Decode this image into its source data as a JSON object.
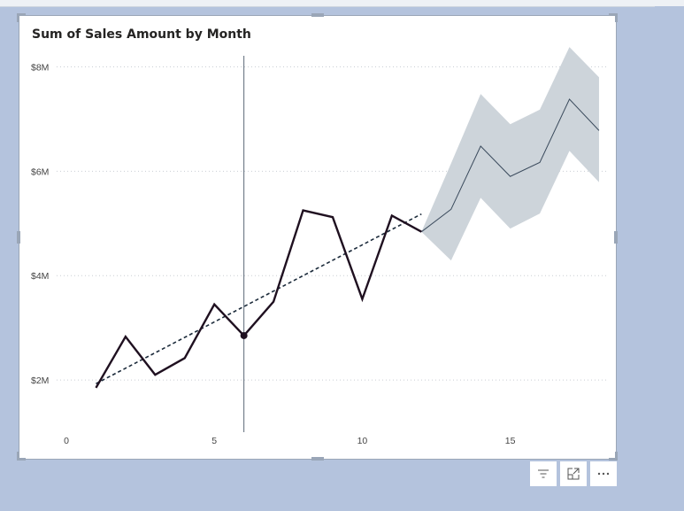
{
  "visual": {
    "title": "Sum of Sales Amount by Month"
  },
  "toolbar": {
    "filter_icon": "filter-icon",
    "focus_icon": "focus-mode-icon",
    "more_icon": "more-options-icon"
  },
  "chart_data": {
    "type": "line",
    "title": "Sum of Sales Amount by Month",
    "xlabel": "",
    "ylabel": "",
    "x_ticks": [
      0,
      5,
      10,
      15
    ],
    "y_ticks": [
      2000000,
      4000000,
      6000000,
      8000000
    ],
    "y_tick_labels": [
      "$2M",
      "$4M",
      "$6M",
      "$8M"
    ],
    "xlim": [
      0,
      18.3
    ],
    "ylim": [
      1000000,
      8500000
    ],
    "grid": true,
    "series": [
      {
        "role": "actual",
        "color": "#1f1020",
        "x": [
          1,
          2,
          3,
          4,
          5,
          6,
          7,
          8,
          9,
          10,
          11,
          12
        ],
        "y": [
          1850000,
          2830000,
          2100000,
          2420000,
          3450000,
          2850000,
          3500000,
          5250000,
          5120000,
          3550000,
          5150000,
          4840000
        ]
      },
      {
        "role": "trend",
        "color": "#1b2a3a",
        "x": [
          1,
          12
        ],
        "y": [
          1930000,
          5180000
        ]
      },
      {
        "role": "forecast",
        "color": "#3a4a5c",
        "x": [
          12,
          13,
          14,
          15,
          16,
          17,
          18
        ],
        "y": [
          4840000,
          5270000,
          6480000,
          5900000,
          6170000,
          7380000,
          6780000
        ],
        "upper": [
          4840000,
          6150000,
          7480000,
          6900000,
          7180000,
          8380000,
          7800000
        ],
        "lower": [
          4840000,
          4290000,
          5490000,
          4900000,
          5190000,
          6390000,
          5790000
        ],
        "band_color": "#cdd4da"
      }
    ],
    "highlight": {
      "x": 6,
      "y": 2850000
    }
  }
}
